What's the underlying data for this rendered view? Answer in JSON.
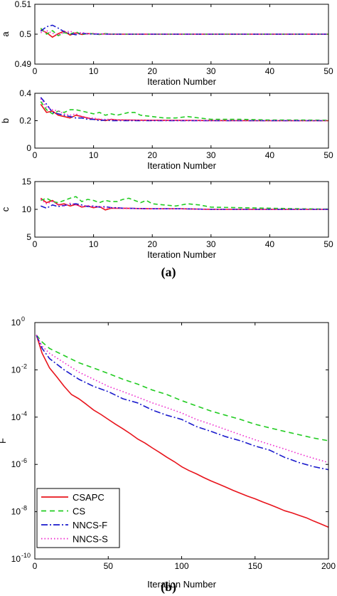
{
  "panels": {
    "a_label": "(a)",
    "b_label": "(b)"
  },
  "chart_data": [
    {
      "type": "line",
      "panel": "a",
      "ylabel": "a",
      "xlabel": "Iteration Number",
      "xlim": [
        0,
        50
      ],
      "ylim": [
        0.49,
        0.51
      ],
      "xticks": [
        "0",
        "10",
        "20",
        "30",
        "40",
        "50"
      ],
      "yticks": [
        "0.49",
        "0.5",
        "0.51"
      ],
      "series": [
        {
          "key": "CSAPC",
          "color": "#e8141c",
          "dash": "",
          "x": [
            1,
            2,
            3,
            4,
            5,
            6,
            7,
            8,
            9,
            10,
            11,
            12,
            13,
            14,
            15,
            20,
            25,
            30,
            40,
            50
          ],
          "y": [
            0.5015,
            0.5005,
            0.499,
            0.5002,
            0.501,
            0.4997,
            0.5004,
            0.4999,
            0.5002,
            0.5001,
            0.5,
            0.5001,
            0.5,
            0.5,
            0.5,
            0.5,
            0.5,
            0.5,
            0.5,
            0.5
          ]
        },
        {
          "key": "CS",
          "color": "#22cc22",
          "dash": "6,4",
          "x": [
            1,
            2,
            3,
            4,
            5,
            6,
            7,
            8,
            9,
            10,
            11,
            12,
            13,
            14,
            15,
            20,
            25,
            30,
            40,
            50
          ],
          "y": [
            0.502,
            0.5,
            0.5012,
            0.4995,
            0.5005,
            0.5,
            0.5008,
            0.4998,
            0.5003,
            0.5001,
            0.4999,
            0.5002,
            0.5,
            0.5001,
            0.5,
            0.5,
            0.5,
            0.5,
            0.5,
            0.5
          ]
        },
        {
          "key": "NNCS-F",
          "color": "#1a1acc",
          "dash": "8,3,2,3",
          "x": [
            1,
            2,
            3,
            4,
            5,
            6,
            7,
            8,
            9,
            10,
            11,
            12,
            13,
            14,
            15,
            20,
            25,
            30,
            40,
            50
          ],
          "y": [
            0.501,
            0.5025,
            0.503,
            0.502,
            0.5008,
            0.5002,
            0.4998,
            0.5003,
            0.5001,
            0.5,
            0.5001,
            0.5,
            0.5,
            0.5,
            0.5,
            0.5,
            0.5,
            0.5,
            0.5,
            0.5
          ]
        },
        {
          "key": "NNCS-S",
          "color": "#ee22cc",
          "dash": "1.5,3",
          "x": [
            1,
            2,
            3,
            4,
            5,
            6,
            7,
            8,
            9,
            10,
            11,
            12,
            13,
            14,
            15,
            20,
            25,
            30,
            40,
            50
          ],
          "y": [
            0.5005,
            0.5012,
            0.5003,
            0.4997,
            0.5006,
            0.501,
            0.5002,
            0.5006,
            0.5001,
            0.5003,
            0.5,
            0.5001,
            0.5,
            0.5,
            0.5,
            0.5,
            0.5,
            0.5,
            0.5,
            0.5
          ]
        }
      ]
    },
    {
      "type": "line",
      "panel": "b",
      "ylabel": "b",
      "xlabel": "Iteration Number",
      "xlim": [
        0,
        50
      ],
      "ylim": [
        0,
        0.4
      ],
      "xticks": [
        "0",
        "10",
        "20",
        "30",
        "40",
        "50"
      ],
      "yticks": [
        "0",
        "0.2",
        "0.4"
      ],
      "series": [
        {
          "key": "CSAPC",
          "color": "#e8141c",
          "dash": "",
          "x": [
            1,
            2,
            3,
            4,
            5,
            6,
            7,
            8,
            9,
            10,
            11,
            12,
            13,
            14,
            15,
            20,
            25,
            30,
            40,
            50
          ],
          "y": [
            0.32,
            0.26,
            0.27,
            0.24,
            0.23,
            0.22,
            0.24,
            0.23,
            0.22,
            0.21,
            0.21,
            0.2,
            0.21,
            0.205,
            0.205,
            0.203,
            0.202,
            0.201,
            0.2,
            0.2
          ]
        },
        {
          "key": "CS",
          "color": "#22cc22",
          "dash": "6,4",
          "x": [
            1,
            2,
            3,
            4,
            5,
            6,
            7,
            8,
            9,
            10,
            11,
            12,
            13,
            14,
            15,
            16,
            17,
            18,
            20,
            22,
            24,
            26,
            28,
            30,
            35,
            40,
            45,
            50
          ],
          "y": [
            0.34,
            0.28,
            0.25,
            0.27,
            0.26,
            0.28,
            0.28,
            0.27,
            0.26,
            0.25,
            0.26,
            0.24,
            0.25,
            0.24,
            0.25,
            0.26,
            0.26,
            0.24,
            0.23,
            0.22,
            0.22,
            0.23,
            0.22,
            0.21,
            0.21,
            0.205,
            0.205,
            0.203
          ]
        },
        {
          "key": "NNCS-F",
          "color": "#1a1acc",
          "dash": "8,3,2,3",
          "x": [
            1,
            2,
            3,
            4,
            5,
            6,
            7,
            8,
            9,
            10,
            11,
            12,
            13,
            14,
            15,
            20,
            25,
            30,
            40,
            50
          ],
          "y": [
            0.37,
            0.32,
            0.26,
            0.25,
            0.24,
            0.23,
            0.22,
            0.22,
            0.21,
            0.21,
            0.2,
            0.205,
            0.2,
            0.2,
            0.2,
            0.2,
            0.2,
            0.2,
            0.2,
            0.2
          ]
        },
        {
          "key": "NNCS-S",
          "color": "#ee22cc",
          "dash": "1.5,3",
          "x": [
            1,
            2,
            3,
            4,
            5,
            6,
            7,
            8,
            9,
            10,
            11,
            12,
            13,
            14,
            15,
            20,
            25,
            30,
            40,
            50
          ],
          "y": [
            0.36,
            0.3,
            0.28,
            0.27,
            0.25,
            0.24,
            0.25,
            0.23,
            0.22,
            0.22,
            0.21,
            0.21,
            0.21,
            0.205,
            0.205,
            0.202,
            0.201,
            0.2,
            0.2,
            0.2
          ]
        }
      ]
    },
    {
      "type": "line",
      "panel": "c",
      "ylabel": "c",
      "xlabel": "Iteration Number",
      "xlim": [
        0,
        50
      ],
      "ylim": [
        5,
        15
      ],
      "xticks": [
        "0",
        "10",
        "20",
        "30",
        "40",
        "50"
      ],
      "yticks": [
        "5",
        "10",
        "15"
      ],
      "series": [
        {
          "key": "CSAPC",
          "color": "#e8141c",
          "dash": "",
          "x": [
            1,
            2,
            3,
            4,
            5,
            6,
            7,
            8,
            9,
            10,
            11,
            12,
            13,
            14,
            15,
            20,
            25,
            30,
            40,
            50
          ],
          "y": [
            12.0,
            11.2,
            11.6,
            10.8,
            11.0,
            10.6,
            10.9,
            10.4,
            10.6,
            10.3,
            10.5,
            9.9,
            10.2,
            10.2,
            10.2,
            10.1,
            10.1,
            10.0,
            10.0,
            10.0
          ]
        },
        {
          "key": "CS",
          "color": "#22cc22",
          "dash": "6,4",
          "x": [
            1,
            2,
            3,
            4,
            5,
            6,
            7,
            8,
            9,
            10,
            11,
            12,
            13,
            14,
            15,
            16,
            17,
            18,
            19,
            20,
            22,
            24,
            26,
            28,
            30,
            35,
            40,
            45,
            50
          ],
          "y": [
            11.6,
            12.0,
            11.4,
            11.2,
            11.6,
            12.0,
            12.3,
            11.4,
            11.8,
            11.6,
            11.2,
            11.6,
            11.4,
            11.4,
            11.8,
            12.0,
            11.6,
            11.2,
            11.6,
            11.0,
            10.8,
            10.6,
            11.0,
            10.8,
            10.4,
            10.3,
            10.2,
            10.1,
            10.05
          ]
        },
        {
          "key": "NNCS-F",
          "color": "#1a1acc",
          "dash": "8,3,2,3",
          "x": [
            1,
            2,
            3,
            4,
            5,
            6,
            7,
            8,
            9,
            10,
            11,
            12,
            13,
            14,
            15,
            20,
            25,
            30,
            40,
            50
          ],
          "y": [
            10.6,
            10.2,
            10.8,
            10.5,
            10.7,
            10.9,
            11.0,
            10.8,
            10.5,
            10.6,
            10.4,
            10.5,
            10.3,
            10.3,
            10.2,
            10.1,
            10.1,
            10.0,
            10.0,
            10.0
          ]
        },
        {
          "key": "NNCS-S",
          "color": "#ee22cc",
          "dash": "1.5,3",
          "x": [
            1,
            2,
            3,
            4,
            5,
            6,
            7,
            8,
            9,
            10,
            11,
            12,
            13,
            14,
            15,
            20,
            25,
            30,
            40,
            50
          ],
          "y": [
            11.8,
            11.0,
            11.4,
            10.9,
            10.6,
            11.1,
            10.8,
            10.5,
            10.7,
            10.4,
            10.5,
            10.3,
            10.3,
            10.2,
            10.2,
            10.1,
            10.1,
            10.0,
            10.0,
            10.0
          ]
        }
      ]
    },
    {
      "type": "line",
      "panel": "F",
      "yscale": "log",
      "ylabel": "F",
      "xlabel": "Iteration Number",
      "xlim": [
        0,
        200
      ],
      "ylim": [
        1e-10,
        1
      ],
      "xticks": [
        "0",
        "50",
        "100",
        "150",
        "200"
      ],
      "yticks": [
        {
          "base": "10",
          "exp": "0"
        },
        {
          "base": "10",
          "exp": "-2"
        },
        {
          "base": "10",
          "exp": "-4"
        },
        {
          "base": "10",
          "exp": "-6"
        },
        {
          "base": "10",
          "exp": "-8"
        },
        {
          "base": "10",
          "exp": "-10"
        }
      ],
      "legend": {
        "position": "bottom-left",
        "entries": [
          "CSAPC",
          "CS",
          "NNCS-F",
          "NNCS-S"
        ]
      },
      "series": [
        {
          "key": "CSAPC",
          "color": "#e8141c",
          "dash": "",
          "x": [
            1,
            5,
            10,
            15,
            20,
            25,
            30,
            35,
            40,
            45,
            50,
            55,
            60,
            65,
            70,
            75,
            80,
            85,
            90,
            95,
            100,
            105,
            110,
            115,
            120,
            125,
            130,
            135,
            140,
            145,
            150,
            155,
            160,
            165,
            170,
            175,
            180,
            185,
            190,
            195,
            200
          ],
          "y": [
            0.3,
            0.05,
            0.012,
            0.005,
            0.002,
            0.0009,
            0.0006,
            0.00035,
            0.0002,
            0.00013,
            8e-05,
            5e-05,
            3.2e-05,
            2e-05,
            1.2e-05,
            8e-06,
            5e-06,
            3.2e-06,
            2e-06,
            1.3e-06,
            8e-07,
            5.5e-07,
            4e-07,
            2.8e-07,
            2e-07,
            1.5e-07,
            1.1e-07,
            8e-08,
            6e-08,
            4.5e-08,
            3.5e-08,
            2.6e-08,
            2e-08,
            1.5e-08,
            1.1e-08,
            9e-09,
            7e-09,
            5.5e-09,
            4e-09,
            3e-09,
            2.2e-09
          ]
        },
        {
          "key": "CS",
          "color": "#22cc22",
          "dash": "7,5",
          "x": [
            1,
            5,
            10,
            20,
            30,
            40,
            50,
            60,
            70,
            80,
            90,
            100,
            110,
            120,
            130,
            140,
            150,
            160,
            170,
            180,
            190,
            200
          ],
          "y": [
            0.3,
            0.15,
            0.08,
            0.04,
            0.02,
            0.012,
            0.007,
            0.004,
            0.0025,
            0.0014,
            0.0009,
            0.0005,
            0.0003,
            0.00018,
            0.00012,
            8e-05,
            5e-05,
            3.5e-05,
            2.5e-05,
            1.8e-05,
            1.3e-05,
            1e-05
          ]
        },
        {
          "key": "NNCS-F",
          "color": "#1a1acc",
          "dash": "9,3,2,3",
          "x": [
            1,
            5,
            10,
            20,
            30,
            40,
            50,
            60,
            70,
            80,
            90,
            100,
            110,
            120,
            130,
            140,
            150,
            160,
            170,
            180,
            190,
            200
          ],
          "y": [
            0.3,
            0.08,
            0.03,
            0.01,
            0.004,
            0.002,
            0.0012,
            0.0006,
            0.0004,
            0.0002,
            0.00012,
            8e-05,
            4e-05,
            2.5e-05,
            1.5e-05,
            1e-05,
            6e-06,
            4e-06,
            2e-06,
            1.2e-06,
            8e-07,
            6e-07
          ]
        },
        {
          "key": "NNCS-S",
          "color": "#ee22cc",
          "dash": "1.5,3",
          "x": [
            1,
            5,
            10,
            20,
            30,
            40,
            50,
            60,
            70,
            80,
            90,
            100,
            110,
            120,
            130,
            140,
            150,
            160,
            170,
            180,
            190,
            200
          ],
          "y": [
            0.3,
            0.1,
            0.05,
            0.02,
            0.008,
            0.004,
            0.002,
            0.0012,
            0.0007,
            0.0004,
            0.00025,
            0.00015,
            8e-05,
            5e-05,
            3e-05,
            1.8e-05,
            1.1e-05,
            7e-06,
            4.5e-06,
            2.8e-06,
            1.8e-06,
            1.2e-06
          ]
        }
      ]
    }
  ]
}
